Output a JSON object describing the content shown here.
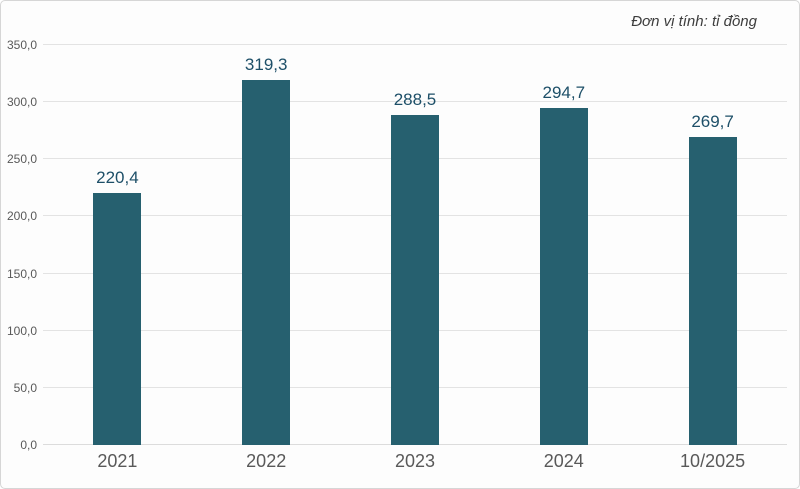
{
  "header": {
    "unit_note": "Đơn vị tính: tỉ đồng"
  },
  "chart_data": {
    "type": "bar",
    "title": "",
    "xlabel": "",
    "ylabel": "",
    "unit_note": "Đơn vị tính: tỉ đồng",
    "categories": [
      "2021",
      "2022",
      "2023",
      "2024",
      "10/2025"
    ],
    "values": [
      220.4,
      319.3,
      288.5,
      294.7,
      269.7
    ],
    "value_labels": [
      "220,4",
      "319,3",
      "288,5",
      "294,7",
      "269,7"
    ],
    "ylim": [
      0,
      350
    ],
    "ytick_step": 50,
    "ytick_values": [
      0,
      50,
      100,
      150,
      200,
      250,
      300,
      350
    ],
    "ytick_labels": [
      "0,0",
      "50,0",
      "100,0",
      "150,0",
      "200,0",
      "250,0",
      "300,0",
      "350,0"
    ],
    "grid": true,
    "legend": false,
    "colors": {
      "bar": "#26606f",
      "value_label": "#1d4f68",
      "axis_text": "#595959",
      "gridline": "#e3e3e3",
      "note_text": "#3d3d3d",
      "border": "#d6d6d6"
    }
  }
}
